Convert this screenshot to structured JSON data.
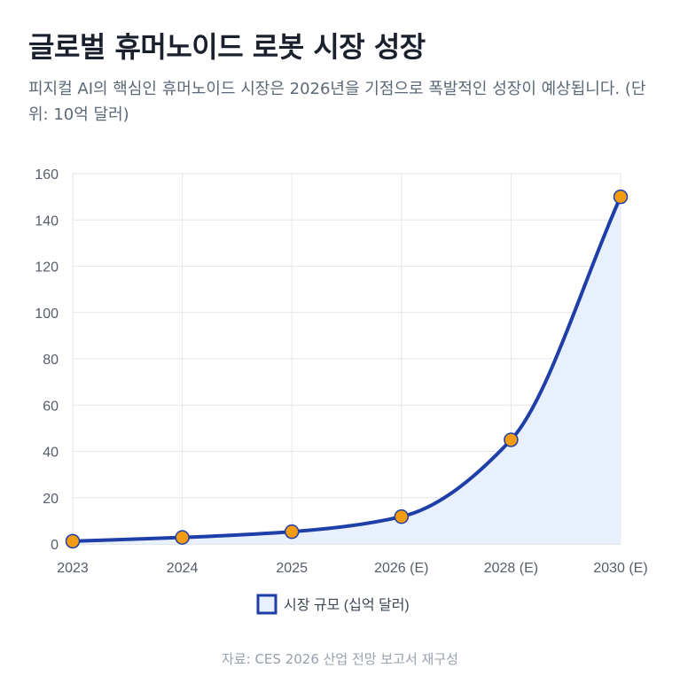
{
  "page": {
    "title": "글로벌 휴머노이드 로봇 시장 성장",
    "subtitle": "피지컬 AI의 핵심인 휴머노이드 시장은 2026년을 기점으로 폭발적인 성장이 예상됩니다. (단위: 10억 달러)",
    "source": "자료: CES 2026 산업 전망 보고서 재구성"
  },
  "colors": {
    "line": "#1e3ea8",
    "area_fill": "#e8effd",
    "point_fill": "#f39c12",
    "point_stroke": "#1e3ea8",
    "grid": "#e3e6ec",
    "axis": "#c7ccd4"
  },
  "chart_data": {
    "type": "line",
    "title": "",
    "xlabel": "",
    "ylabel": "",
    "categories": [
      "2023",
      "2024",
      "2025",
      "2026 (E)",
      "2028 (E)",
      "2030 (E)"
    ],
    "series": [
      {
        "name": "시장 규모 (십억 달러)",
        "values": [
          1.2,
          2.8,
          5.3,
          11.8,
          45,
          150
        ]
      }
    ],
    "ylim": [
      0,
      160
    ],
    "yticks": [
      0,
      20,
      40,
      60,
      80,
      100,
      120,
      140,
      160
    ],
    "grid": true,
    "area_fill": true,
    "legend": "bottom-center"
  }
}
